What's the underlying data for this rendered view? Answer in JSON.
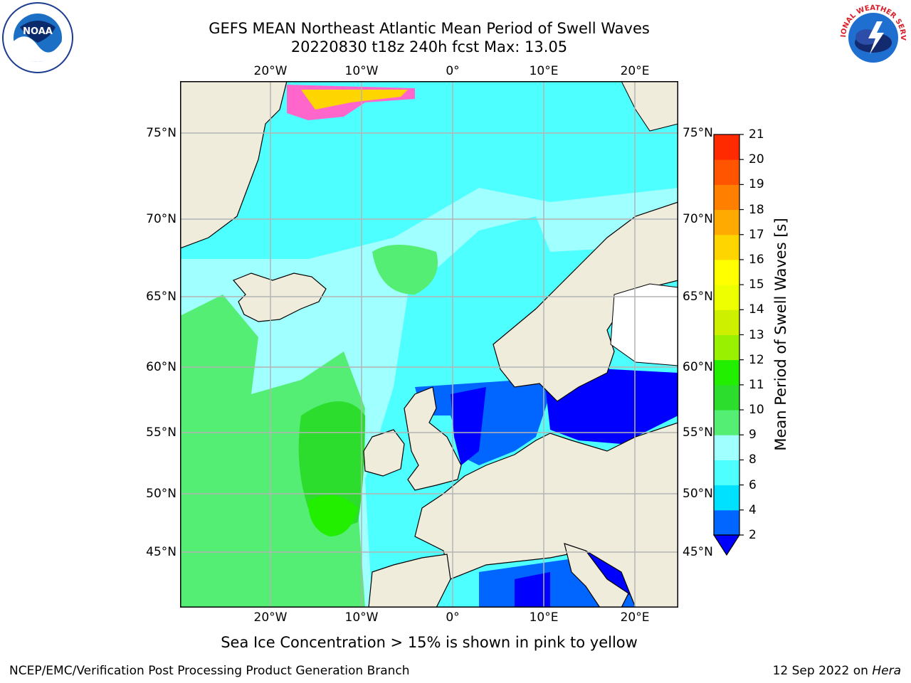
{
  "title": {
    "line1": "GEFS MEAN Northeast Atlantic Mean Period of Swell Waves",
    "line2": "20220830 t18z 240h fcst   Max: 13.05"
  },
  "logos": {
    "left": {
      "icon": "noaa-logo",
      "text": "NOAA"
    },
    "right": {
      "icon": "nws-logo",
      "text": "NATIONAL WEATHER SERVICE"
    }
  },
  "map": {
    "lon_ticks": [
      "20°W",
      "10°W",
      "0°",
      "10°E",
      "20°E"
    ],
    "lat_ticks": [
      "75°N",
      "70°N",
      "65°N",
      "60°N",
      "55°N",
      "50°N",
      "45°N"
    ],
    "colors": {
      "land": "#efecdc",
      "grid": "#b4b4b4",
      "coast": "#000000"
    }
  },
  "colorbar": {
    "label": "Mean Period of Swell Waves [s]",
    "ticks": [
      "2",
      "4",
      "6",
      "8",
      "9",
      "10",
      "11",
      "12",
      "13",
      "14",
      "15",
      "16",
      "17",
      "18",
      "19",
      "20",
      "21"
    ],
    "colors": [
      "#0066ff",
      "#00e0ff",
      "#4dffff",
      "#a0ffff",
      "#55ee75",
      "#2ddd2d",
      "#22ee00",
      "#99f000",
      "#ccf000",
      "#eeff00",
      "#ffff00",
      "#ffd500",
      "#ffaa00",
      "#ff7f00",
      "#ff5500",
      "#ff2a00",
      "#ff0000"
    ],
    "under_color": "#0000ff"
  },
  "footnote": "Sea Ice Concentration > 15% is shown in pink to yellow",
  "credit": "NCEP/EMC/Verification Post Processing Product Generation Branch",
  "stamp": {
    "date": "12 Sep 2022 on",
    "host": "Hera"
  }
}
